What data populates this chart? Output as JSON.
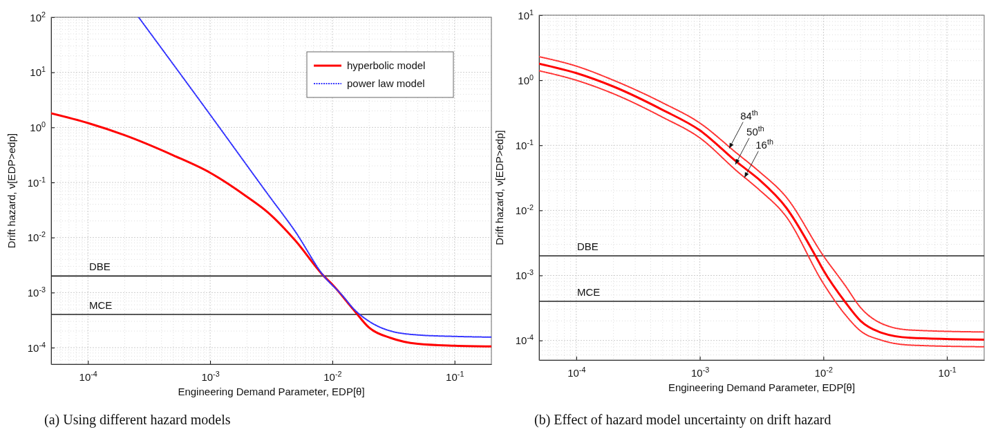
{
  "chart_data": [
    {
      "type": "line",
      "xlabel": "Engineering Demand Parameter, EDP[θ]",
      "ylabel": "Drift hazard, ν[EDP>edp]",
      "xlim": [
        5e-05,
        0.2
      ],
      "ylim": [
        5e-05,
        100
      ],
      "xticks": [
        {
          "value": 0.0001,
          "label": "10$^{-4}$"
        },
        {
          "value": 0.001,
          "label": "10$^{-3}$"
        },
        {
          "value": 0.01,
          "label": "10$^{-2}$"
        },
        {
          "value": 0.1,
          "label": "10$^{-1}$"
        }
      ],
      "yticks": [
        {
          "value": 0.0001,
          "label": "10$^{-4}$"
        },
        {
          "value": 0.001,
          "label": "10$^{-3}$"
        },
        {
          "value": 0.01,
          "label": "10$^{-2}$"
        },
        {
          "value": 0.1,
          "label": "10$^{-1}$"
        },
        {
          "value": 1,
          "label": "10$^{0}$"
        },
        {
          "value": 10,
          "label": "10$^{1}$"
        },
        {
          "value": 100,
          "label": "10$^{2}$"
        }
      ],
      "log": "xy",
      "grid": true,
      "legend": "top right",
      "series": [
        {
          "name": "hyperbolic model",
          "color": "#ff0000",
          "line_style": "solid",
          "x": [
            5e-05,
            0.0001,
            0.0002,
            0.0005,
            0.001,
            0.002,
            0.003,
            0.005,
            0.0085,
            0.01,
            0.015,
            0.02,
            0.03,
            0.05,
            0.1,
            0.2
          ],
          "values": [
            1.8,
            1.2,
            0.72,
            0.31,
            0.15,
            0.055,
            0.028,
            0.0087,
            0.002,
            0.0014,
            0.00048,
            0.00023,
            0.00015,
            0.000117,
            0.000108,
            0.000105
          ]
        },
        {
          "name": "power law model",
          "color": "#3333ff",
          "line_style": "dotted",
          "x": [
            0.00026,
            0.001,
            0.003,
            0.005,
            0.0085,
            0.012,
            0.015,
            0.02,
            0.03,
            0.05,
            0.1,
            0.2
          ],
          "values": [
            100,
            1.7,
            0.059,
            0.0126,
            0.002,
            0.0009,
            0.0005,
            0.0003,
            0.0002,
            0.00017,
            0.00016,
            0.000155
          ]
        }
      ],
      "ref_lines": [
        {
          "axis": "y",
          "value": 0.002,
          "label": "DBE",
          "color": "#222222"
        },
        {
          "axis": "y",
          "value": 0.0004,
          "label": "MCE",
          "color": "#222222"
        }
      ],
      "annotations": [
        "(a) Using different hazard models"
      ]
    },
    {
      "type": "line",
      "xlabel": "Engineering Demand Parameter, EDP[θ]",
      "ylabel": "Drift hazard, ν[EDP>edp]",
      "xlim": [
        5e-05,
        0.2
      ],
      "ylim": [
        5e-05,
        10
      ],
      "xticks": [
        {
          "value": 0.0001,
          "label": "10$^{-4}$"
        },
        {
          "value": 0.001,
          "label": "10$^{-3}$"
        },
        {
          "value": 0.01,
          "label": "10$^{-2}$"
        },
        {
          "value": 0.1,
          "label": "10$^{-1}$"
        }
      ],
      "yticks": [
        {
          "value": 0.0001,
          "label": "10$^{-4}$"
        },
        {
          "value": 0.001,
          "label": "10$^{-3}$"
        },
        {
          "value": 0.01,
          "label": "10$^{-2}$"
        },
        {
          "value": 0.1,
          "label": "10$^{-1}$"
        },
        {
          "value": 1,
          "label": "10$^{0}$"
        },
        {
          "value": 10,
          "label": "10$^{1}$"
        }
      ],
      "log": "xy",
      "grid": true,
      "series": [
        {
          "color": "#ff3333",
          "line_style": "dotted",
          "x": [
            5e-05,
            0.0001,
            0.0002,
            0.0005,
            0.001,
            0.002,
            0.003,
            0.005,
            0.01,
            0.015,
            0.02,
            0.03,
            0.05,
            0.2
          ],
          "values": [
            2.3,
            1.65,
            1.0,
            0.45,
            0.22,
            0.075,
            0.04,
            0.016,
            0.002,
            0.0007,
            0.00032,
            0.00018,
            0.000145,
            0.000135
          ]
        },
        {
          "color": "#ff0000",
          "line_style": "solid",
          "x": [
            5e-05,
            0.0001,
            0.0002,
            0.0005,
            0.001,
            0.002,
            0.003,
            0.005,
            0.0085,
            0.01,
            0.015,
            0.02,
            0.03,
            0.05,
            0.2
          ],
          "values": [
            1.8,
            1.29,
            0.8,
            0.35,
            0.17,
            0.055,
            0.03,
            0.011,
            0.0021,
            0.0012,
            0.00039,
            0.0002,
            0.00013,
            0.00011,
            0.000103
          ]
        },
        {
          "color": "#ff3333",
          "line_style": "dotted",
          "x": [
            5e-05,
            0.0001,
            0.0002,
            0.0005,
            0.001,
            0.002,
            0.003,
            0.005,
            0.01,
            0.015,
            0.02,
            0.03,
            0.05,
            0.2
          ],
          "values": [
            1.4,
            1.0,
            0.62,
            0.27,
            0.13,
            0.04,
            0.021,
            0.008,
            0.00075,
            0.00025,
            0.00014,
            0.0001,
            8.5e-05,
            8e-05
          ]
        }
      ],
      "ref_lines": [
        {
          "axis": "y",
          "value": 0.002,
          "label": "DBE",
          "color": "#222222"
        },
        {
          "axis": "y",
          "value": 0.0004,
          "label": "MCE",
          "color": "#222222"
        }
      ],
      "annotations": [
        {
          "text": "84$^{th}$",
          "x": 0.00173,
          "y": 0.09
        },
        {
          "text": "50$^{th}$",
          "x": 0.00194,
          "y": 0.051
        },
        {
          "text": "16$^{th}$",
          "x": 0.0023,
          "y": 0.032
        },
        "(b) Effect of hazard model uncertainty on drift hazard"
      ]
    }
  ]
}
